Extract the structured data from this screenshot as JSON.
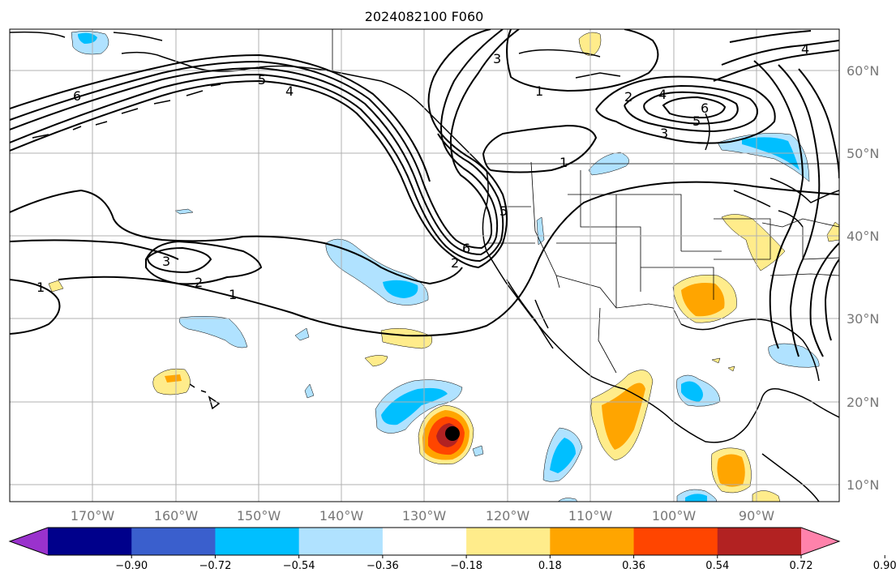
{
  "title": "2024082100 F060",
  "lat_labels": [
    "60°N",
    "50°N",
    "40°N",
    "30°N",
    "20°N",
    "10°N"
  ],
  "lon_labels": [
    "170°W",
    "160°W",
    "150°W",
    "140°W",
    "130°W",
    "120°W",
    "110°W",
    "100°W",
    "90°W"
  ],
  "colorbar": {
    "tick_labels": [
      "−0.90",
      "−0.72",
      "−0.54",
      "−0.36",
      "−0.18",
      "0.18",
      "0.36",
      "0.54",
      "0.72",
      "0.90"
    ],
    "colors": [
      "#9a32cd",
      "#00008b",
      "#3a5fcd",
      "#00bfff",
      "#b0e2ff",
      "#ffffff",
      "#ffec8b",
      "#ffa500",
      "#ff4500",
      "#b22222",
      "#ff82ab"
    ]
  },
  "contour_labels": [
    {
      "text": "6"
    },
    {
      "text": "5"
    },
    {
      "text": "4"
    },
    {
      "text": "1"
    },
    {
      "text": "2"
    },
    {
      "text": "3"
    },
    {
      "text": "1"
    },
    {
      "text": "2"
    },
    {
      "text": "1"
    },
    {
      "text": "6"
    },
    {
      "text": "5"
    },
    {
      "text": "3"
    },
    {
      "text": "4"
    },
    {
      "text": "2"
    },
    {
      "text": "1"
    },
    {
      "text": "6"
    },
    {
      "text": "5"
    },
    {
      "text": "3"
    },
    {
      "text": "4"
    }
  ],
  "colors": {
    "grid": "#b0b0b0",
    "coast": "#000000",
    "contour": "#000000",
    "storm_center": "#000000"
  }
}
